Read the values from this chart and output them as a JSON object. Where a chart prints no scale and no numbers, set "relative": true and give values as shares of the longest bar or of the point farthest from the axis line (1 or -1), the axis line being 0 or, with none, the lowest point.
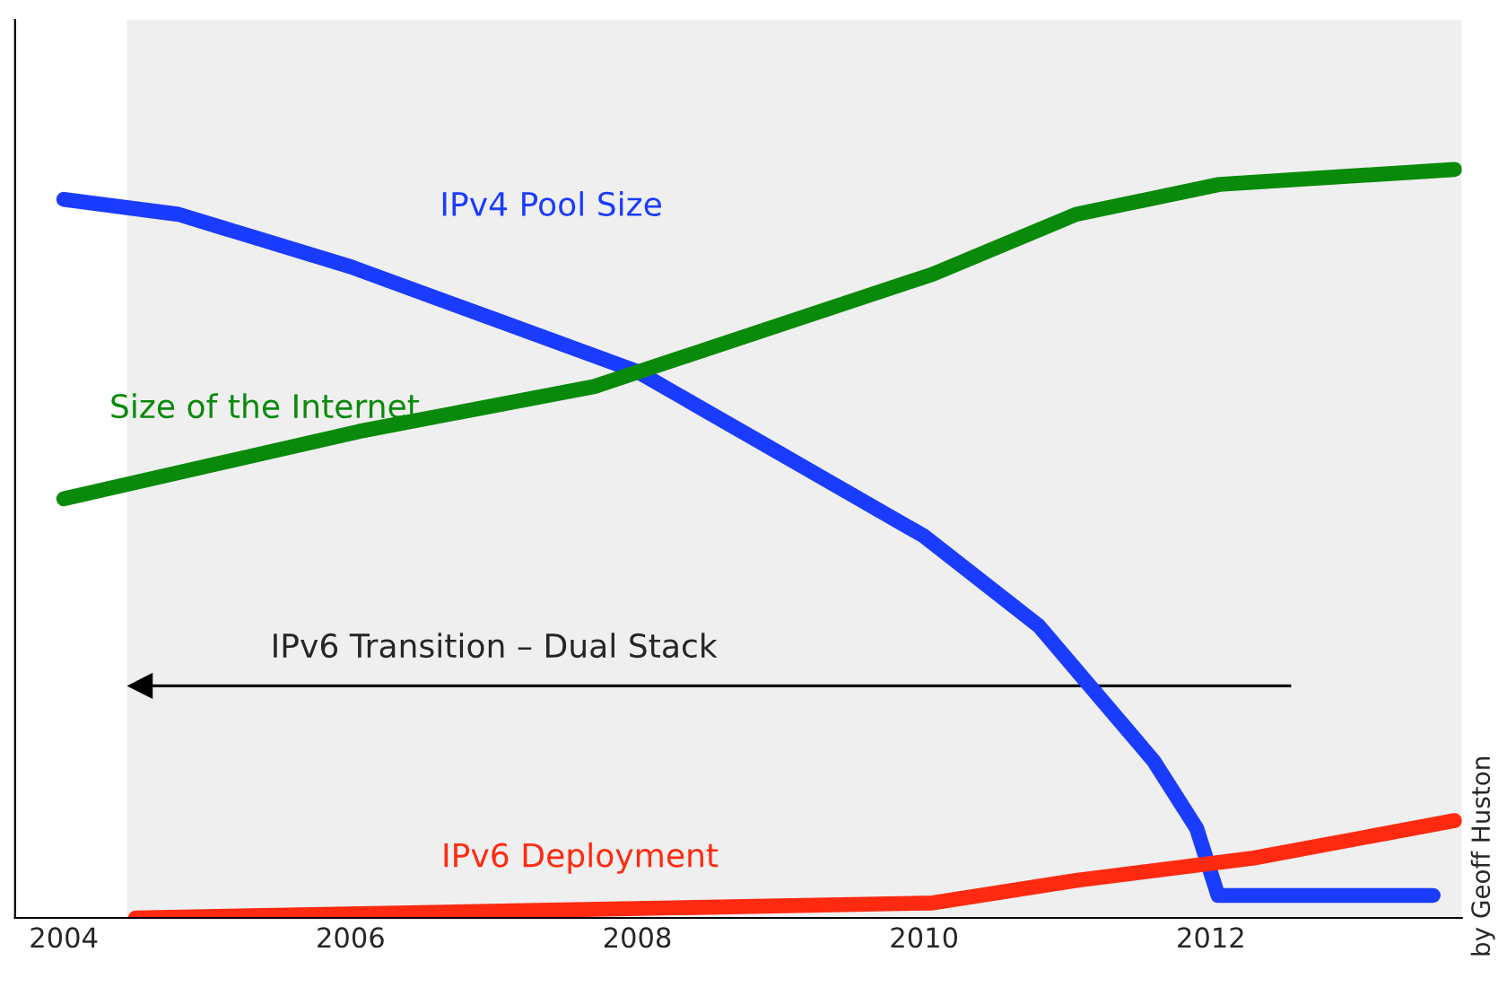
{
  "chart_data": {
    "type": "line",
    "relative": true,
    "xlim": [
      2003.66,
      2013.75
    ],
    "xticks": [
      2004,
      2006,
      2008,
      2010,
      2012
    ],
    "series": [
      {
        "name": "IPv4 Pool Size",
        "color": "#1a3cff",
        "x": [
          2004,
          2004.8,
          2006,
          2007,
          2008,
          2009,
          2010,
          2010.8,
          2011.6,
          2011.9,
          2012.05,
          2012.2,
          2013.55
        ],
        "values": [
          0.96,
          0.94,
          0.87,
          0.8,
          0.73,
          0.62,
          0.51,
          0.39,
          0.21,
          0.12,
          0.03,
          0.03,
          0.03
        ]
      },
      {
        "name": "Size of the Internet",
        "color": "#0a8a0a",
        "x": [
          2004,
          2006.06,
          2007.7,
          2008.8,
          2010.06,
          2011.06,
          2012.06,
          2013.7
        ],
        "values": [
          0.56,
          0.65,
          0.71,
          0.78,
          0.86,
          0.94,
          0.98,
          1.0
        ]
      },
      {
        "name": "IPv6 Deployment",
        "color": "#ff2a10",
        "x": [
          2004.5,
          2007.3,
          2010.06,
          2011.06,
          2012.3,
          2013.7
        ],
        "values": [
          0,
          0.01,
          0.02,
          0.05,
          0.08,
          0.13
        ]
      }
    ],
    "bands": [
      {
        "axis": "x",
        "from": 2004.44,
        "to": 2013.75,
        "color": "#efefef"
      }
    ],
    "annotations": [
      "IPv6 Transition – Dual Stack",
      "by Geoff Huston"
    ],
    "grid": false,
    "legend": false,
    "marker": "none",
    "line_style": "solid"
  }
}
